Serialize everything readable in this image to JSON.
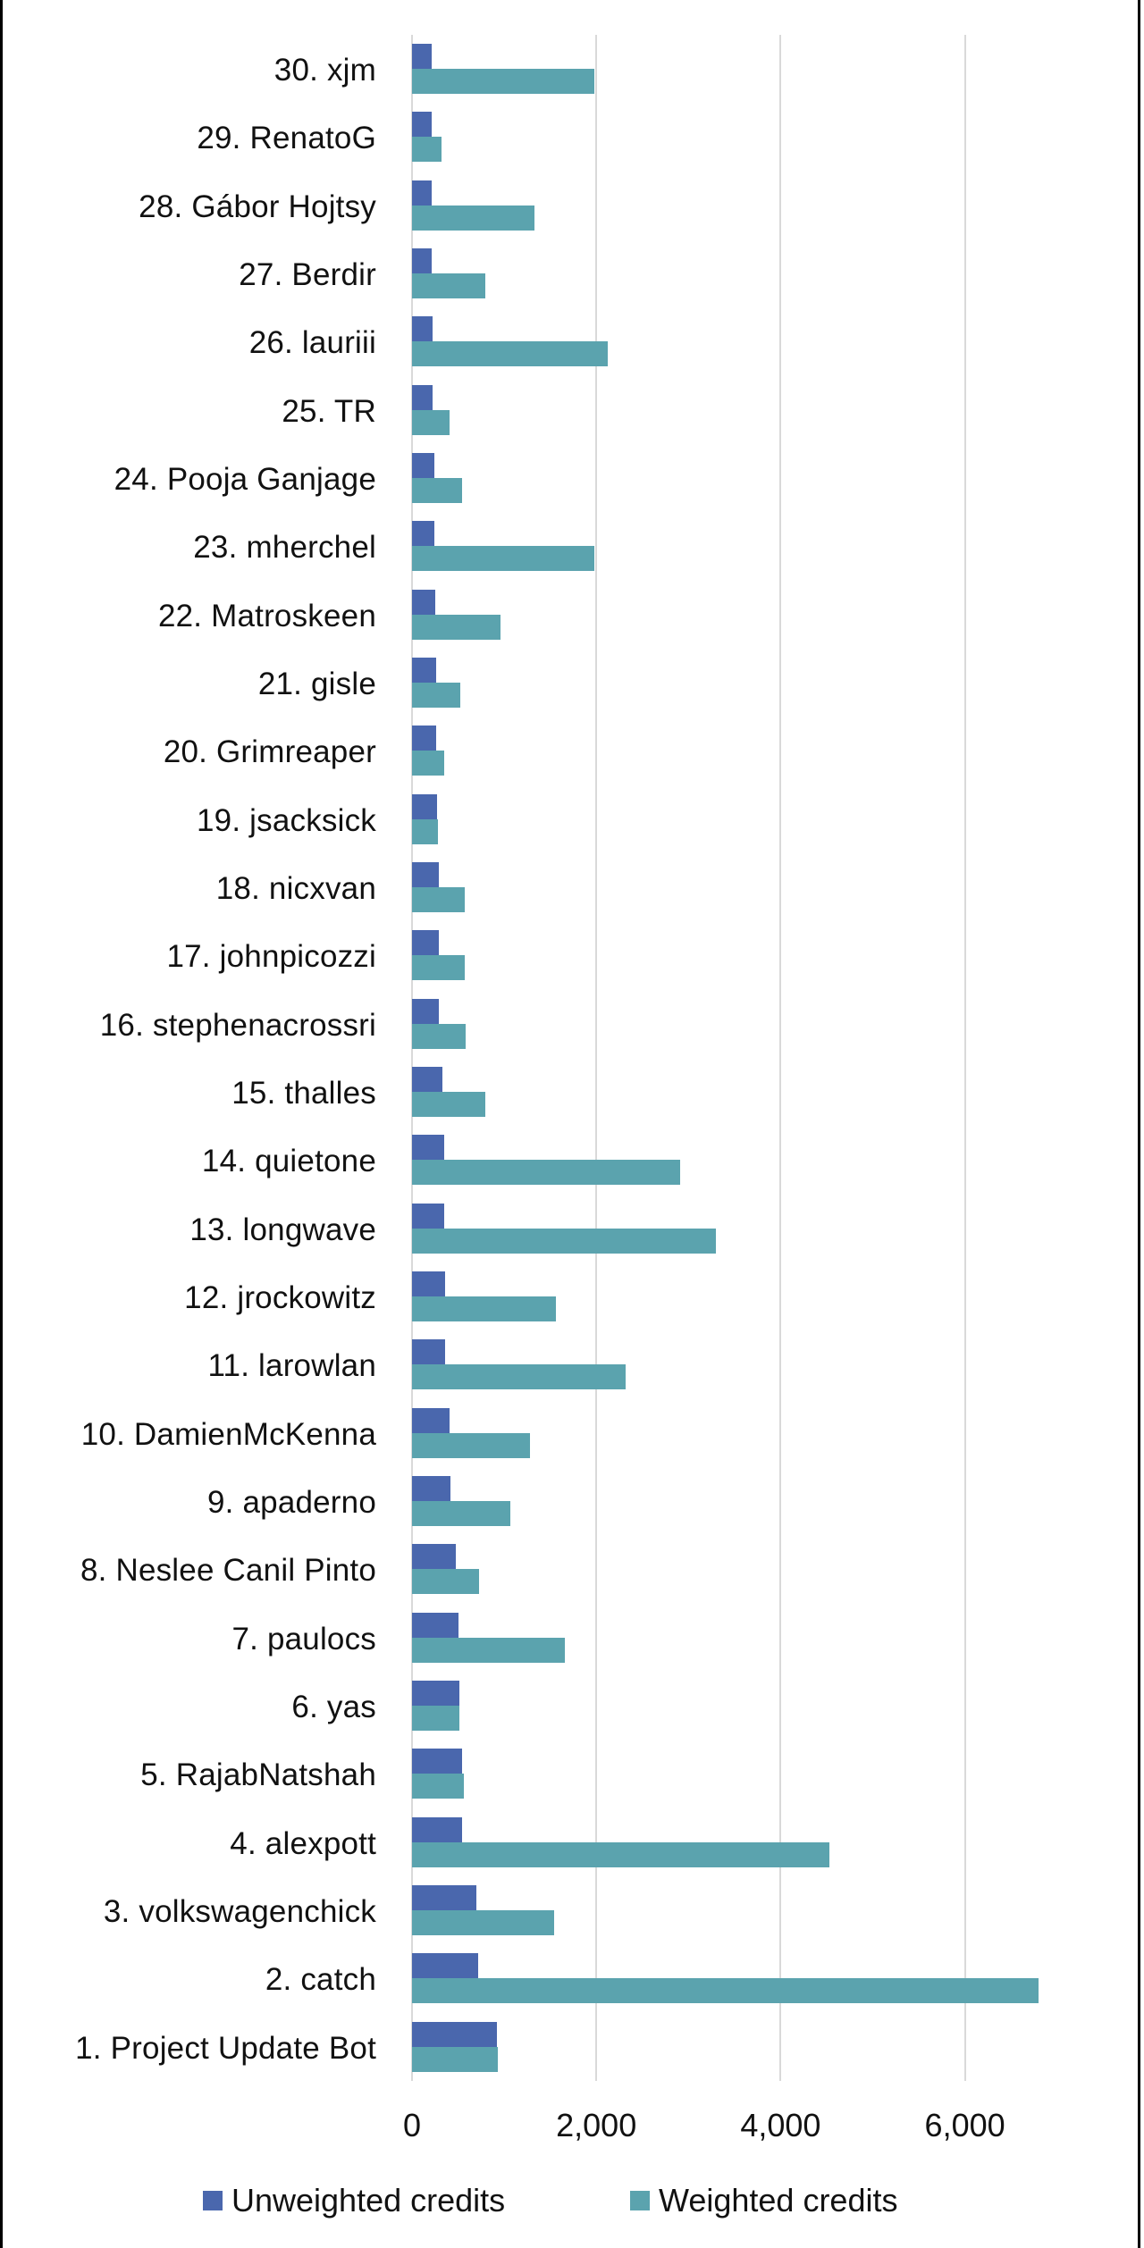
{
  "chart_data": {
    "type": "bar",
    "orientation": "horizontal",
    "title": "",
    "xlabel": "",
    "ylabel": "",
    "xlim": [
      0,
      7900
    ],
    "x_ticks": [
      "0",
      "2,000",
      "4,000",
      "6,000"
    ],
    "x_tick_values": [
      0,
      2000,
      4000,
      6000
    ],
    "grid": true,
    "legend_position": "bottom",
    "categories": [
      "30. xjm",
      "29. RenatoG",
      "28. Gábor Hojtsy",
      "27. Berdir",
      "26. lauriii",
      "25. TR",
      "24. Pooja Ganjage",
      "23. mherchel",
      "22. Matroskeen",
      "21. gisle",
      "20. Grimreaper",
      "19. jsacksick",
      "18. nicxvan",
      "17. johnpicozzi",
      "16. stephenacrossri",
      "15. thalles",
      "14. quietone",
      "13. longwave",
      "12. jrockowitz",
      "11. larowlan",
      "10. DamienMcKenna",
      "9. apaderno",
      "8. Neslee Canil Pinto",
      "7. paulocs",
      "6. yas",
      "5. RajabNatshah",
      "4. alexpott",
      "3. volkswagenchick",
      "2. catch",
      "1. Project Update Bot"
    ],
    "series": [
      {
        "name": "Unweighted credits",
        "color": "#4a67ad",
        "values": [
          218,
          218,
          218,
          218,
          223,
          223,
          239,
          244,
          254,
          265,
          265,
          270,
          291,
          291,
          291,
          332,
          353,
          353,
          358,
          363,
          405,
          415,
          472,
          503,
          514,
          545,
          545,
          700,
          721,
          923
        ]
      },
      {
        "name": "Weighted credits",
        "color": "#5ba3ae",
        "values": [
          1982,
          316,
          1333,
          799,
          2127,
          410,
          540,
          1982,
          965,
          519,
          353,
          280,
          571,
          571,
          586,
          799,
          2911,
          3294,
          1562,
          2319,
          1281,
          1069,
          726,
          1655,
          514,
          566,
          4529,
          1546,
          6796,
          934
        ]
      }
    ]
  },
  "legend": {
    "items": [
      {
        "label": "Unweighted credits",
        "color": "#4a67ad"
      },
      {
        "label": "Weighted credits",
        "color": "#5ba3ae"
      }
    ]
  },
  "colors": {
    "grid": "#d9d9d9",
    "border": "#000000"
  }
}
